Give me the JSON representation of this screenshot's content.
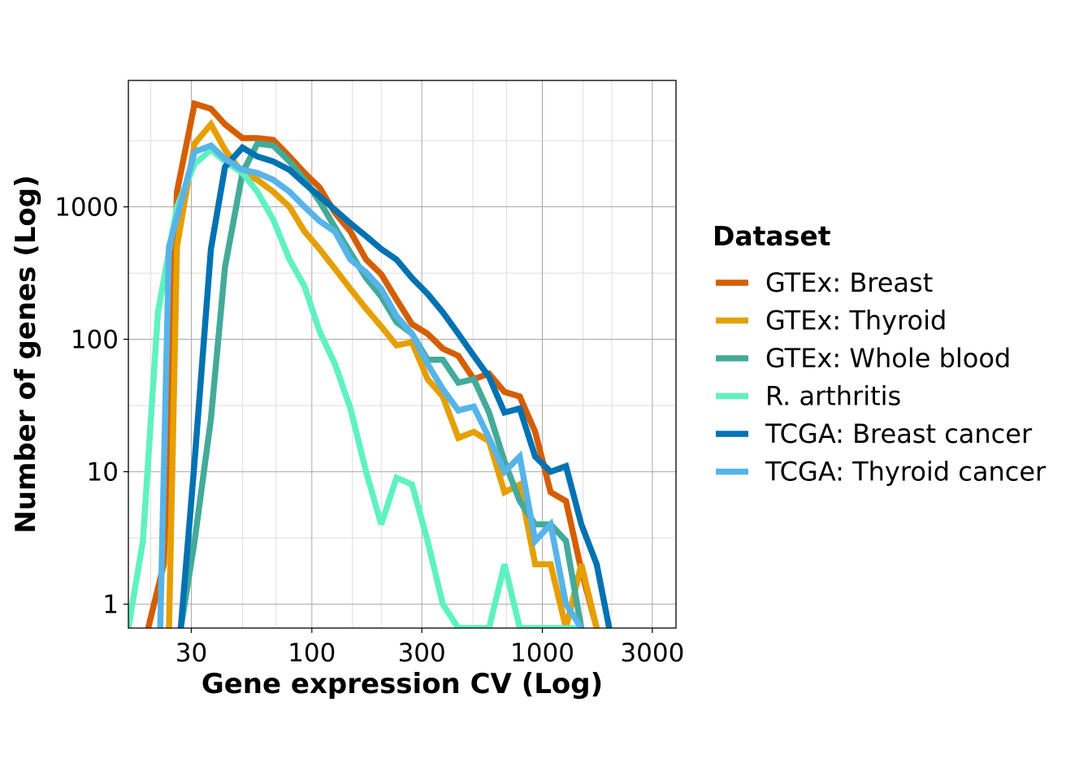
{
  "chart_data": {
    "type": "line",
    "xlabel": "Gene expression CV (Log)",
    "ylabel": "Number of genes (Log)",
    "x_scale": "log",
    "y_scale": "log",
    "xlim": [
      16,
      3800
    ],
    "ylim": [
      0.66,
      9000
    ],
    "grid": true,
    "x_ticks": [
      {
        "value": 30,
        "label": "30"
      },
      {
        "value": 100,
        "label": "100"
      },
      {
        "value": 300,
        "label": "300"
      },
      {
        "value": 1000,
        "label": "1000"
      },
      {
        "value": 3000,
        "label": "3000"
      }
    ],
    "x_minor_ticks": [
      20,
      50,
      70,
      150,
      200,
      500,
      700,
      1500,
      2000
    ],
    "y_ticks": [
      {
        "value": 1,
        "label": "1"
      },
      {
        "value": 10,
        "label": "10"
      },
      {
        "value": 100,
        "label": "100"
      },
      {
        "value": 1000,
        "label": "1000"
      }
    ],
    "y_minor_ticks": [
      3.16,
      31.6,
      316,
      3162
    ],
    "legend": {
      "title": "Dataset",
      "position": "right"
    },
    "series": [
      {
        "name": "GTEx: Breast",
        "color": "#D55E00",
        "points": [
          [
            19.5,
            0.66
          ],
          [
            22.8,
            2
          ],
          [
            26,
            1300
          ],
          [
            31,
            6000
          ],
          [
            36.5,
            5500
          ],
          [
            42,
            4200
          ],
          [
            50,
            3300
          ],
          [
            58,
            3300
          ],
          [
            68,
            3200
          ],
          [
            80,
            2400
          ],
          [
            93,
            1800
          ],
          [
            108,
            1400
          ],
          [
            126,
            900
          ],
          [
            147,
            650
          ],
          [
            172,
            400
          ],
          [
            200,
            310
          ],
          [
            233,
            200
          ],
          [
            272,
            130
          ],
          [
            318,
            110
          ],
          [
            370,
            85
          ],
          [
            432,
            75
          ],
          [
            504,
            50
          ],
          [
            587,
            55
          ],
          [
            685,
            40
          ],
          [
            798,
            37
          ],
          [
            931,
            20
          ],
          [
            1086,
            7
          ],
          [
            1266,
            6
          ],
          [
            1476,
            1.8
          ],
          [
            1721,
            0.66
          ]
        ]
      },
      {
        "name": "GTEx: Thyroid",
        "color": "#E69F00",
        "points": [
          [
            24,
            0.66
          ],
          [
            26,
            500
          ],
          [
            31,
            3000
          ],
          [
            36.5,
            4200
          ],
          [
            42,
            2700
          ],
          [
            50,
            1800
          ],
          [
            58,
            1600
          ],
          [
            68,
            1300
          ],
          [
            80,
            1000
          ],
          [
            93,
            650
          ],
          [
            108,
            480
          ],
          [
            126,
            340
          ],
          [
            147,
            240
          ],
          [
            172,
            170
          ],
          [
            200,
            125
          ],
          [
            233,
            90
          ],
          [
            272,
            95
          ],
          [
            318,
            50
          ],
          [
            370,
            37
          ],
          [
            432,
            18
          ],
          [
            504,
            20
          ],
          [
            587,
            17
          ],
          [
            685,
            7
          ],
          [
            798,
            8
          ],
          [
            931,
            2
          ],
          [
            1086,
            2
          ],
          [
            1266,
            0.66
          ],
          [
            1476,
            2
          ],
          [
            1721,
            0.66
          ]
        ]
      },
      {
        "name": "GTEx: Whole blood",
        "color": "#44AA99",
        "points": [
          [
            27,
            0.66
          ],
          [
            31,
            3
          ],
          [
            36.5,
            25
          ],
          [
            42,
            350
          ],
          [
            50,
            1800
          ],
          [
            58,
            3000
          ],
          [
            68,
            2900
          ],
          [
            80,
            2200
          ],
          [
            93,
            1600
          ],
          [
            108,
            1100
          ],
          [
            126,
            700
          ],
          [
            147,
            450
          ],
          [
            172,
            290
          ],
          [
            200,
            210
          ],
          [
            233,
            135
          ],
          [
            272,
            110
          ],
          [
            318,
            70
          ],
          [
            370,
            70
          ],
          [
            432,
            47
          ],
          [
            504,
            50
          ],
          [
            587,
            28
          ],
          [
            685,
            12
          ],
          [
            798,
            6
          ],
          [
            931,
            4
          ],
          [
            1086,
            4
          ],
          [
            1266,
            3
          ],
          [
            1476,
            0.66
          ]
        ]
      },
      {
        "name": "R. arthritis",
        "color": "#5FF2C0",
        "points": [
          [
            16,
            0.66
          ],
          [
            18.5,
            3
          ],
          [
            21.5,
            160
          ],
          [
            26,
            1000
          ],
          [
            31,
            2100
          ],
          [
            36.5,
            2700
          ],
          [
            42,
            2200
          ],
          [
            50,
            1800
          ],
          [
            58,
            1300
          ],
          [
            68,
            800
          ],
          [
            80,
            400
          ],
          [
            93,
            250
          ],
          [
            108,
            115
          ],
          [
            126,
            65
          ],
          [
            147,
            30
          ],
          [
            172,
            10
          ],
          [
            200,
            4
          ],
          [
            233,
            9
          ],
          [
            272,
            8
          ],
          [
            318,
            3
          ],
          [
            370,
            1
          ],
          [
            432,
            0.66
          ],
          [
            504,
            0.66
          ],
          [
            587,
            0.66
          ],
          [
            685,
            2
          ],
          [
            798,
            0.66
          ],
          [
            931,
            0.66
          ],
          [
            1086,
            0.66
          ],
          [
            1266,
            0.66
          ],
          [
            1476,
            0.66
          ]
        ]
      },
      {
        "name": "TCGA: Breast cancer",
        "color": "#0072B2",
        "points": [
          [
            27,
            0.66
          ],
          [
            31,
            12
          ],
          [
            36.5,
            480
          ],
          [
            42,
            2000
          ],
          [
            50,
            2800
          ],
          [
            58,
            2400
          ],
          [
            68,
            2200
          ],
          [
            80,
            1900
          ],
          [
            93,
            1500
          ],
          [
            108,
            1200
          ],
          [
            126,
            950
          ],
          [
            147,
            750
          ],
          [
            172,
            600
          ],
          [
            200,
            480
          ],
          [
            233,
            400
          ],
          [
            272,
            290
          ],
          [
            318,
            220
          ],
          [
            370,
            160
          ],
          [
            432,
            110
          ],
          [
            504,
            75
          ],
          [
            587,
            52
          ],
          [
            685,
            28
          ],
          [
            798,
            30
          ],
          [
            931,
            13
          ],
          [
            1086,
            10
          ],
          [
            1266,
            11
          ],
          [
            1476,
            4
          ],
          [
            1721,
            2
          ],
          [
            1950,
            0.66
          ]
        ]
      },
      {
        "name": "TCGA: Thyroid cancer",
        "color": "#56B4E9",
        "points": [
          [
            22,
            0.66
          ],
          [
            24,
            500
          ],
          [
            31,
            2600
          ],
          [
            36.5,
            2900
          ],
          [
            42,
            2300
          ],
          [
            50,
            1900
          ],
          [
            58,
            1800
          ],
          [
            68,
            1600
          ],
          [
            80,
            1300
          ],
          [
            93,
            1000
          ],
          [
            108,
            780
          ],
          [
            126,
            650
          ],
          [
            147,
            400
          ],
          [
            172,
            320
          ],
          [
            200,
            240
          ],
          [
            233,
            150
          ],
          [
            272,
            110
          ],
          [
            318,
            65
          ],
          [
            370,
            42
          ],
          [
            432,
            29
          ],
          [
            504,
            31
          ],
          [
            587,
            18
          ],
          [
            685,
            10
          ],
          [
            798,
            13
          ],
          [
            931,
            3
          ],
          [
            1086,
            4
          ],
          [
            1266,
            1
          ],
          [
            1476,
            0.66
          ]
        ]
      }
    ]
  }
}
